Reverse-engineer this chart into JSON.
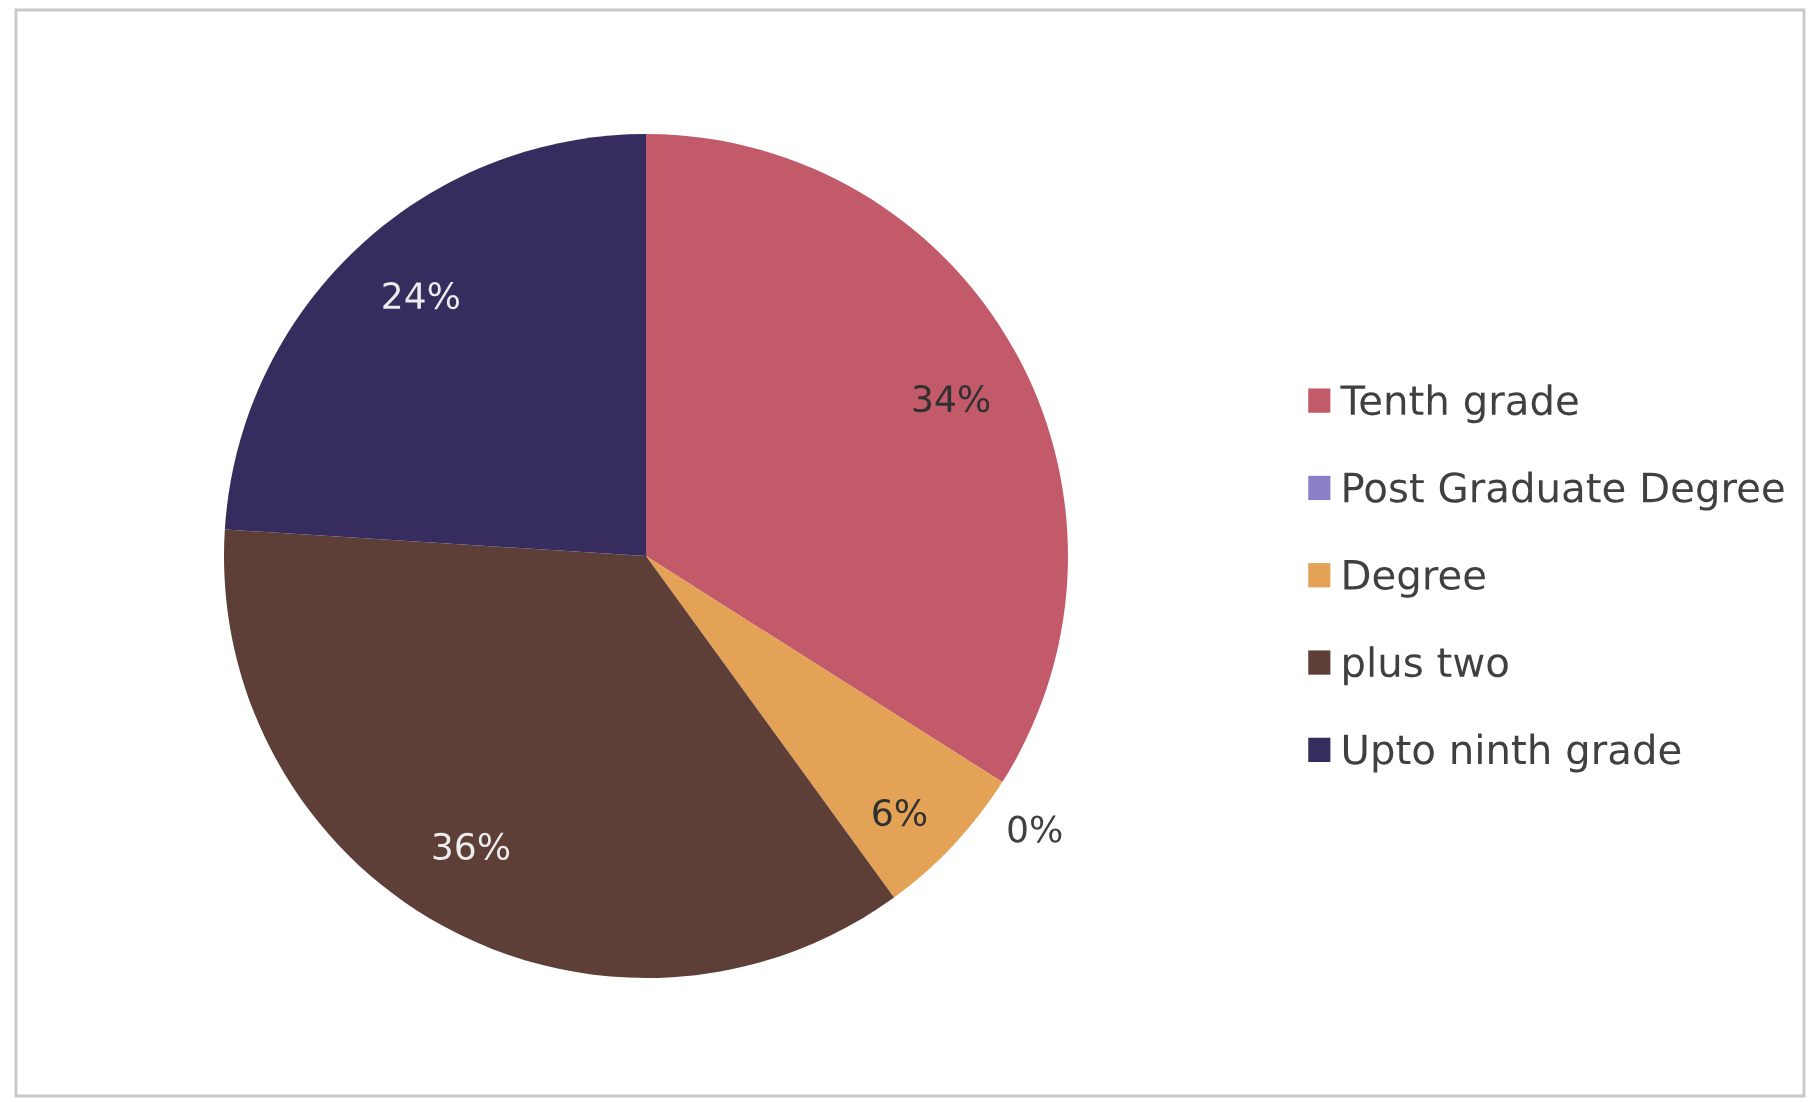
{
  "chart_data": {
    "type": "pie",
    "categories": [
      "Tenth grade",
      "Post Graduate Degree",
      "Degree",
      "plus two",
      "Upto ninth grade"
    ],
    "values": [
      34,
      0,
      6,
      36,
      24
    ],
    "colors": [
      "#c35a6a",
      "#8a80c8",
      "#e3a255",
      "#5e3f38",
      "#362d5e"
    ],
    "value_labels": [
      "34%",
      "0%",
      "6%",
      "36%",
      "24%"
    ],
    "legend": "right"
  }
}
